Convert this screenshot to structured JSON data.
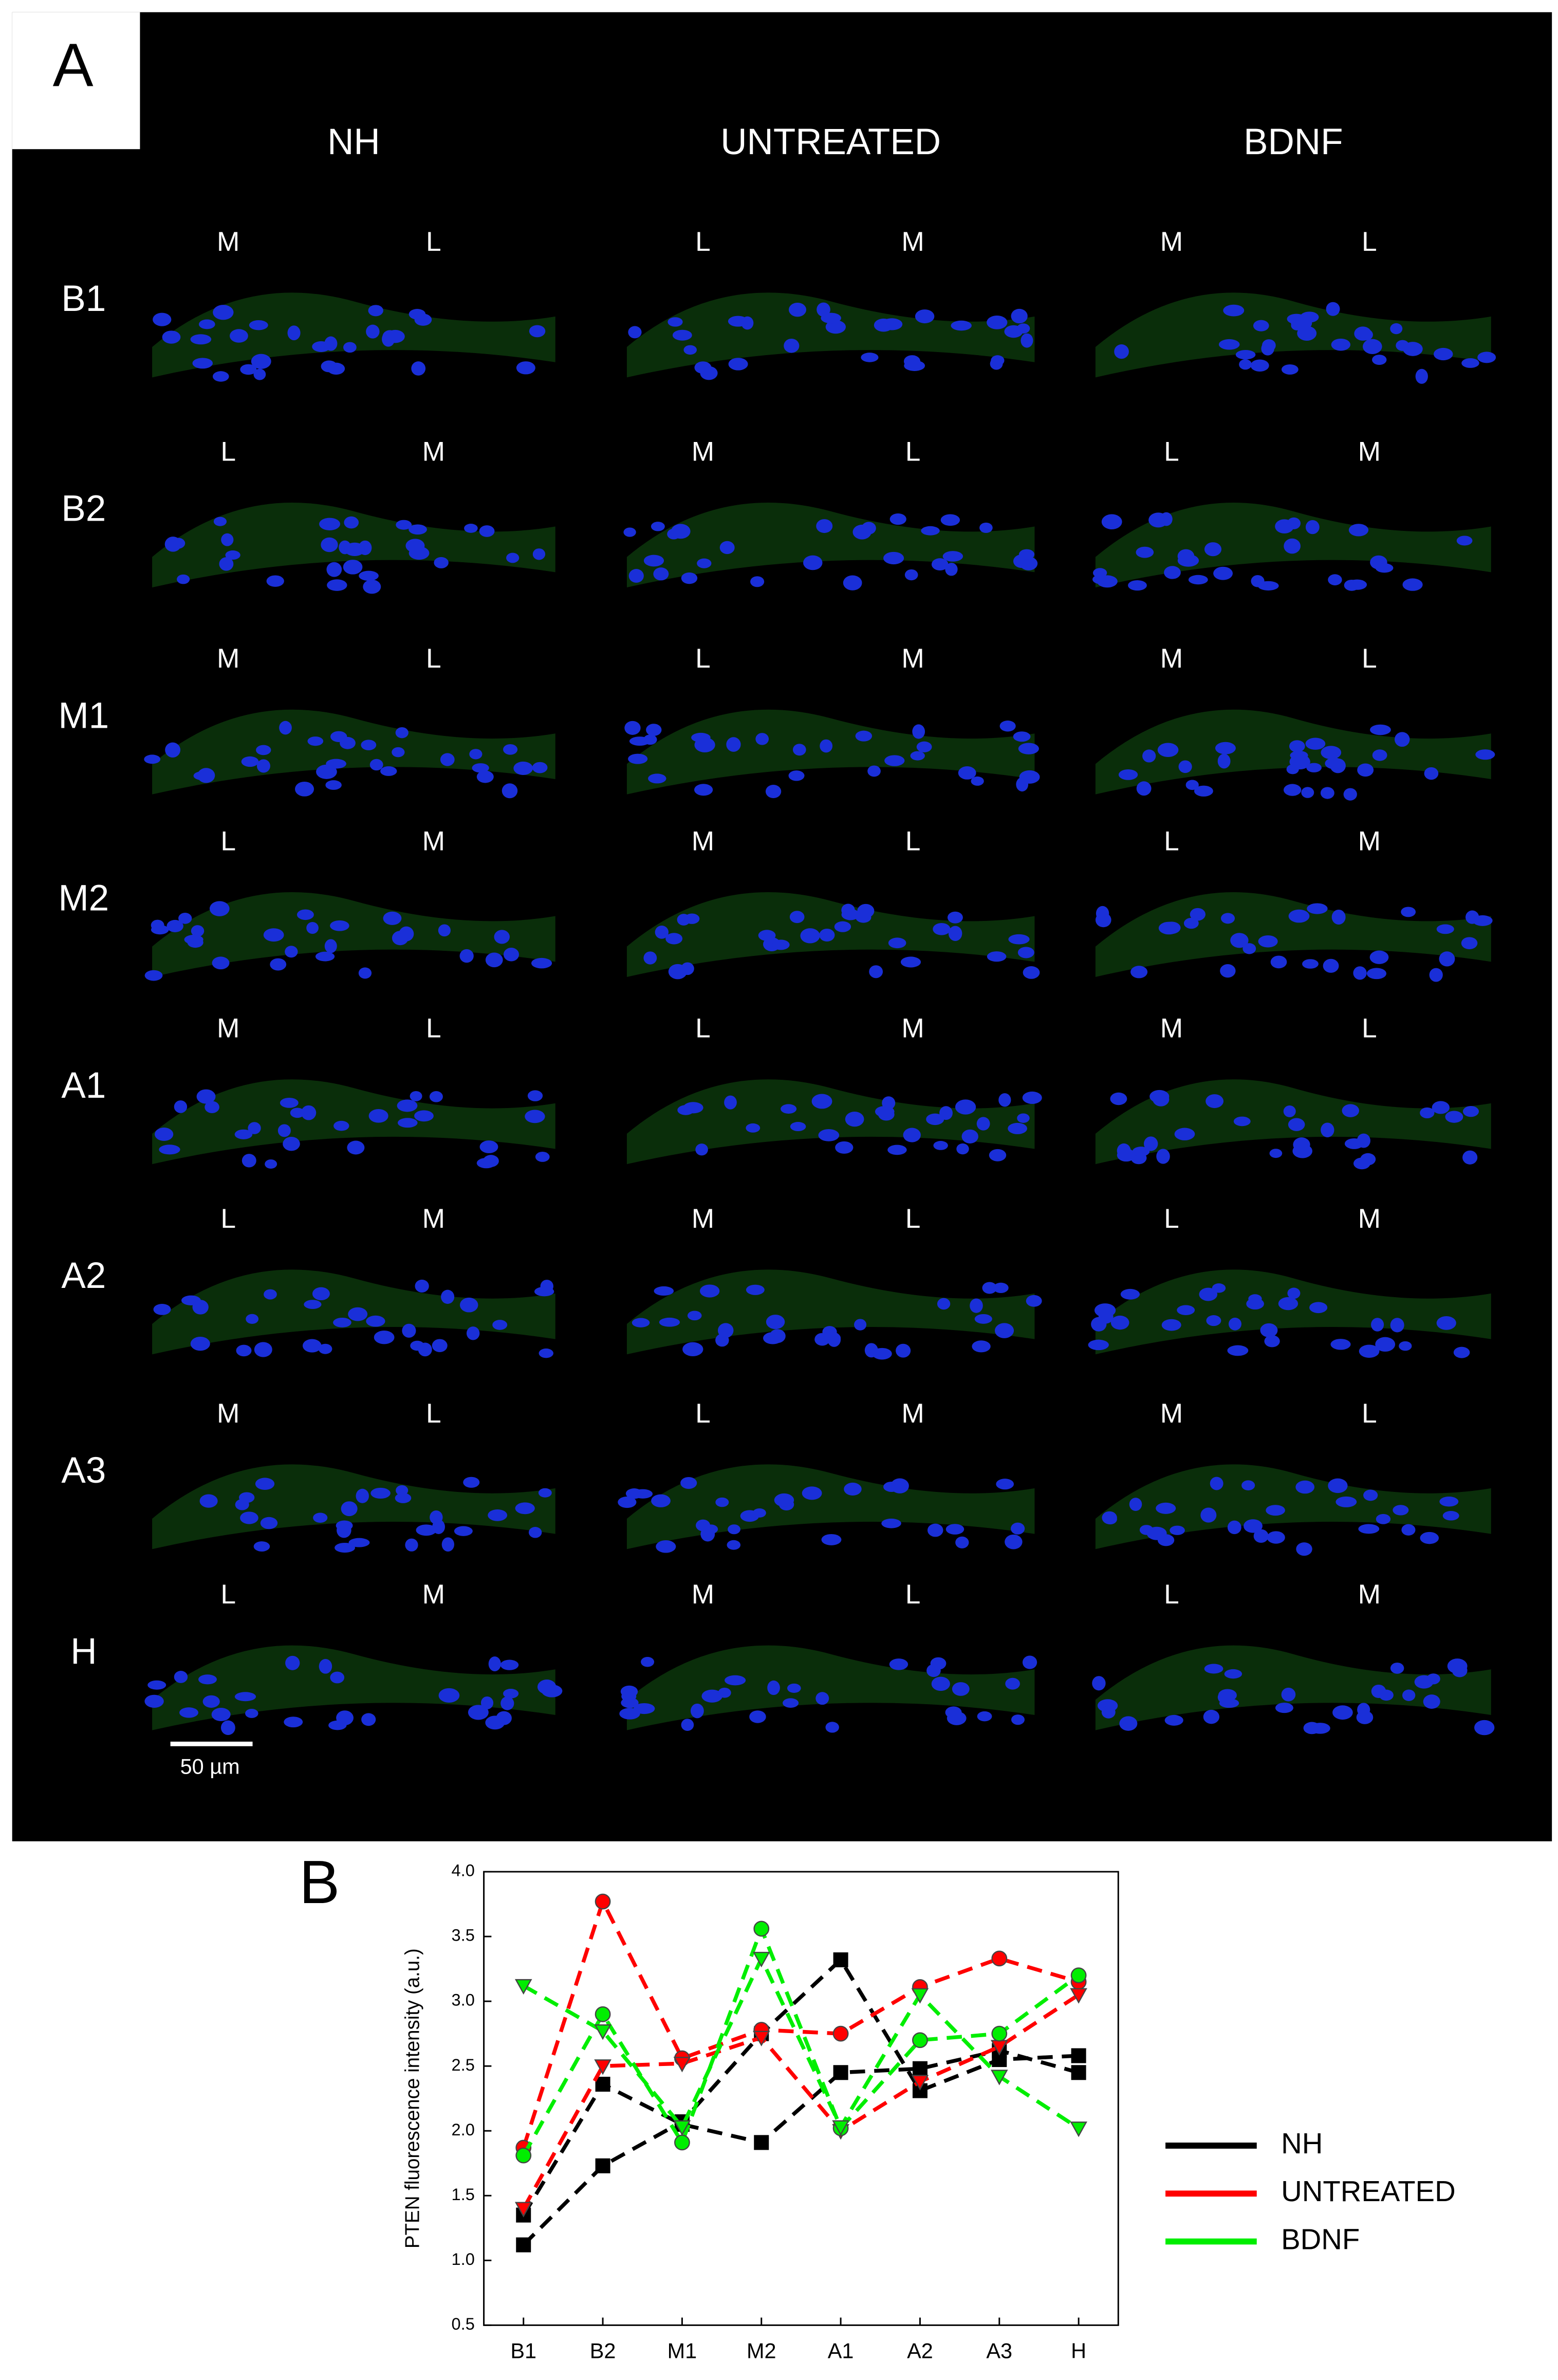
{
  "panel_labels": [
    "A",
    "B"
  ],
  "panel_a": {
    "columns": [
      "NH",
      "UNTREATED",
      "BDNF"
    ],
    "rows": [
      "B1",
      "B2",
      "M1",
      "M2",
      "A1",
      "A2",
      "A3",
      "H"
    ],
    "tiles": [
      [
        [
          "M",
          "L"
        ],
        [
          "L",
          "M"
        ],
        [
          "M",
          "L"
        ],
        [
          "L",
          "M"
        ],
        [
          "M",
          "L"
        ],
        [
          "L",
          "M"
        ],
        [
          "M",
          "L"
        ],
        [
          "L",
          "M"
        ]
      ],
      [
        [
          "L",
          "M"
        ],
        [
          "M",
          "L"
        ],
        [
          "L",
          "M"
        ],
        [
          "M",
          "L"
        ],
        [
          "L",
          "M"
        ],
        [
          "M",
          "L"
        ],
        [
          "L",
          "M"
        ],
        [
          "M",
          "L"
        ]
      ],
      [
        [
          "M",
          "L"
        ],
        [
          "L",
          "M"
        ],
        [
          "M",
          "L"
        ],
        [
          "L",
          "M"
        ],
        [
          "M",
          "L"
        ],
        [
          "L",
          "M"
        ],
        [
          "M",
          "L"
        ],
        [
          "L",
          "M"
        ]
      ]
    ],
    "scale_bar": "50 µm"
  },
  "chart_data": {
    "type": "line",
    "ylabel": "PTEN fluorescence intensity (a.u.)",
    "categories": [
      "B1",
      "B2",
      "M1",
      "M2",
      "A1",
      "A2",
      "A3",
      "H"
    ],
    "ylim": [
      0.5,
      4.0
    ],
    "yticks": [
      0.5,
      {
        "value": 1,
        "label": "1.0"
      },
      1.5,
      {
        "value": 2,
        "label": "2.0"
      },
      2.5,
      {
        "value": 3,
        "label": "3.0"
      },
      3.5,
      {
        "value": 4,
        "label": "4.0"
      }
    ],
    "legend": "right",
    "series": [
      {
        "name": "NH",
        "color": "#000000",
        "lines": [
          {
            "marker": "square",
            "values": [
              1.12,
              1.73,
              2.07,
              2.75,
              3.32,
              2.31,
              2.55,
              2.58
            ]
          },
          {
            "marker": "square",
            "values": [
              1.35,
              2.36,
              2.05,
              1.91,
              2.45,
              2.48,
              2.62,
              2.45
            ]
          }
        ]
      },
      {
        "name": "UNTREATED",
        "color": "#ff0000",
        "lines": [
          {
            "marker": "circle",
            "values": [
              1.87,
              3.77,
              2.56,
              2.78,
              2.75,
              3.11,
              3.33,
              3.15
            ]
          },
          {
            "marker": "triangle",
            "values": [
              1.4,
              2.5,
              2.52,
              2.72,
              2.0,
              2.38,
              2.65,
              3.05
            ]
          }
        ]
      },
      {
        "name": "BDNF",
        "color": "#00ee00",
        "lines": [
          {
            "marker": "circle",
            "values": [
              1.81,
              2.9,
              1.91,
              3.56,
              2.02,
              2.7,
              2.75,
              3.2
            ]
          },
          {
            "marker": "triangle",
            "values": [
              3.12,
              2.77,
              2.03,
              3.33,
              2.03,
              3.05,
              2.42,
              2.02
            ]
          }
        ]
      }
    ]
  }
}
